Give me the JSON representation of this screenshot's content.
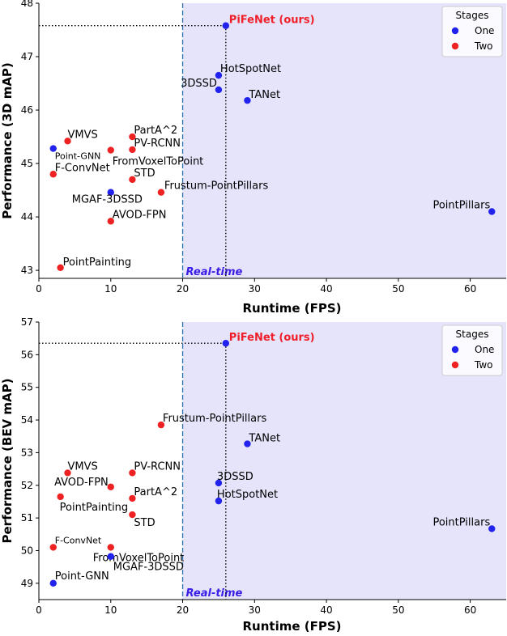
{
  "chart_data": [
    {
      "type": "scatter",
      "xlabel": "Runtime (FPS)",
      "ylabel": "Performance (3D mAP)",
      "xlim": [
        0,
        65
      ],
      "ylim": [
        42.85,
        48.0
      ],
      "xticks": [
        0,
        10,
        20,
        30,
        40,
        50,
        60
      ],
      "yticks": [
        43,
        44,
        45,
        46,
        47,
        48
      ],
      "legend": {
        "title": "Stages",
        "placement": "top-right",
        "entries": [
          {
            "label": "One",
            "color": "#2222ee"
          },
          {
            "label": "Two",
            "color": "#ee2222"
          }
        ]
      },
      "realtime": {
        "x": 20,
        "label": "Real-time"
      },
      "highlight": {
        "name": "PiFeNet (ours)",
        "x": 26,
        "y": 47.58
      },
      "points": [
        {
          "name": "PiFeNet (ours)",
          "x": 26,
          "y": 47.58,
          "stage": "One"
        },
        {
          "name": "HotSpotNet",
          "x": 25,
          "y": 46.65,
          "stage": "One"
        },
        {
          "name": "3DSSD",
          "x": 25,
          "y": 46.38,
          "stage": "One"
        },
        {
          "name": "TANet",
          "x": 29,
          "y": 46.18,
          "stage": "One"
        },
        {
          "name": "VMVS",
          "x": 4,
          "y": 45.42,
          "stage": "Two"
        },
        {
          "name": "PartA^2",
          "x": 13,
          "y": 45.5,
          "stage": "Two"
        },
        {
          "name": "Point-GNN",
          "x": 2,
          "y": 45.28,
          "stage": "One"
        },
        {
          "name": "PV-RCNN",
          "x": 13,
          "y": 45.26,
          "stage": "Two"
        },
        {
          "name": "FromVoxelToPoint",
          "x": 10,
          "y": 45.25,
          "stage": "Two"
        },
        {
          "name": "F-ConvNet",
          "x": 2,
          "y": 44.8,
          "stage": "Two"
        },
        {
          "name": "STD",
          "x": 13,
          "y": 44.7,
          "stage": "Two"
        },
        {
          "name": "MGAF-3DSSD",
          "x": 10,
          "y": 44.46,
          "stage": "One"
        },
        {
          "name": "Frustum-PointPillars",
          "x": 17,
          "y": 44.46,
          "stage": "Two"
        },
        {
          "name": "AVOD-FPN",
          "x": 10,
          "y": 43.92,
          "stage": "Two"
        },
        {
          "name": "PointPillars",
          "x": 63,
          "y": 44.1,
          "stage": "One"
        },
        {
          "name": "PointPainting",
          "x": 3,
          "y": 43.05,
          "stage": "Two"
        }
      ]
    },
    {
      "type": "scatter",
      "xlabel": "Runtime (FPS)",
      "ylabel": "Performance (BEV mAP)",
      "xlim": [
        0,
        65
      ],
      "ylim": [
        48.5,
        57.0
      ],
      "xticks": [
        0,
        10,
        20,
        30,
        40,
        50,
        60
      ],
      "yticks": [
        49,
        50,
        51,
        52,
        53,
        54,
        55,
        56,
        57
      ],
      "legend": {
        "title": "Stages",
        "placement": "top-right",
        "entries": [
          {
            "label": "One",
            "color": "#2222ee"
          },
          {
            "label": "Two",
            "color": "#ee2222"
          }
        ]
      },
      "realtime": {
        "x": 20,
        "label": "Real-time"
      },
      "highlight": {
        "name": "PiFeNet (ours)",
        "x": 26,
        "y": 56.35
      },
      "points": [
        {
          "name": "PiFeNet (ours)",
          "x": 26,
          "y": 56.35,
          "stage": "One"
        },
        {
          "name": "Frustum-PointPillars",
          "x": 17,
          "y": 53.85,
          "stage": "Two"
        },
        {
          "name": "TANet",
          "x": 29,
          "y": 53.27,
          "stage": "One"
        },
        {
          "name": "VMVS",
          "x": 4,
          "y": 52.38,
          "stage": "Two"
        },
        {
          "name": "PV-RCNN",
          "x": 13,
          "y": 52.38,
          "stage": "Two"
        },
        {
          "name": "3DSSD",
          "x": 25,
          "y": 52.07,
          "stage": "One"
        },
        {
          "name": "AVOD-FPN",
          "x": 10,
          "y": 51.95,
          "stage": "Two"
        },
        {
          "name": "PartA^2",
          "x": 13,
          "y": 51.6,
          "stage": "Two"
        },
        {
          "name": "PointPainting",
          "x": 3,
          "y": 51.65,
          "stage": "Two"
        },
        {
          "name": "HotSpotNet",
          "x": 25,
          "y": 51.52,
          "stage": "One"
        },
        {
          "name": "STD",
          "x": 13,
          "y": 51.1,
          "stage": "Two"
        },
        {
          "name": "F-ConvNet",
          "x": 2,
          "y": 50.1,
          "stage": "Two"
        },
        {
          "name": "FromVoxelToPoint",
          "x": 10,
          "y": 50.1,
          "stage": "Two"
        },
        {
          "name": "MGAF-3DSSD",
          "x": 10,
          "y": 49.82,
          "stage": "One"
        },
        {
          "name": "PointPillars",
          "x": 63,
          "y": 50.67,
          "stage": "One"
        },
        {
          "name": "Point-GNN",
          "x": 2,
          "y": 49.0,
          "stage": "One"
        }
      ]
    }
  ]
}
